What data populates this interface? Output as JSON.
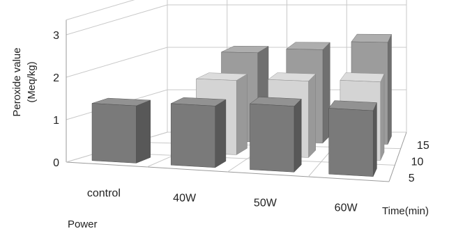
{
  "chart_data": {
    "type": "bar",
    "subtype": "3d-column",
    "title": "",
    "xlabel": "Power",
    "ylabel": "Peroxide value (Meq/kg)",
    "zlabel": "Time(min)",
    "categories": [
      "control",
      "40W",
      "50W",
      "60W"
    ],
    "depth_categories": [
      "5",
      "10",
      "15"
    ],
    "ylim": [
      0,
      3
    ],
    "y_ticks": [
      "0",
      "1",
      "2",
      "3"
    ],
    "grid": true,
    "legend": "none",
    "series": [
      {
        "depth": "5",
        "color": "#7a7a7a",
        "values": [
          1.35,
          1.45,
          1.55,
          1.55
        ]
      },
      {
        "depth": "10",
        "color": "#d4d4d4",
        "values": [
          null,
          1.75,
          1.8,
          1.85
        ]
      },
      {
        "depth": "15",
        "color": "#9c9c9c",
        "values": [
          null,
          2.1,
          2.2,
          2.4
        ]
      }
    ]
  }
}
